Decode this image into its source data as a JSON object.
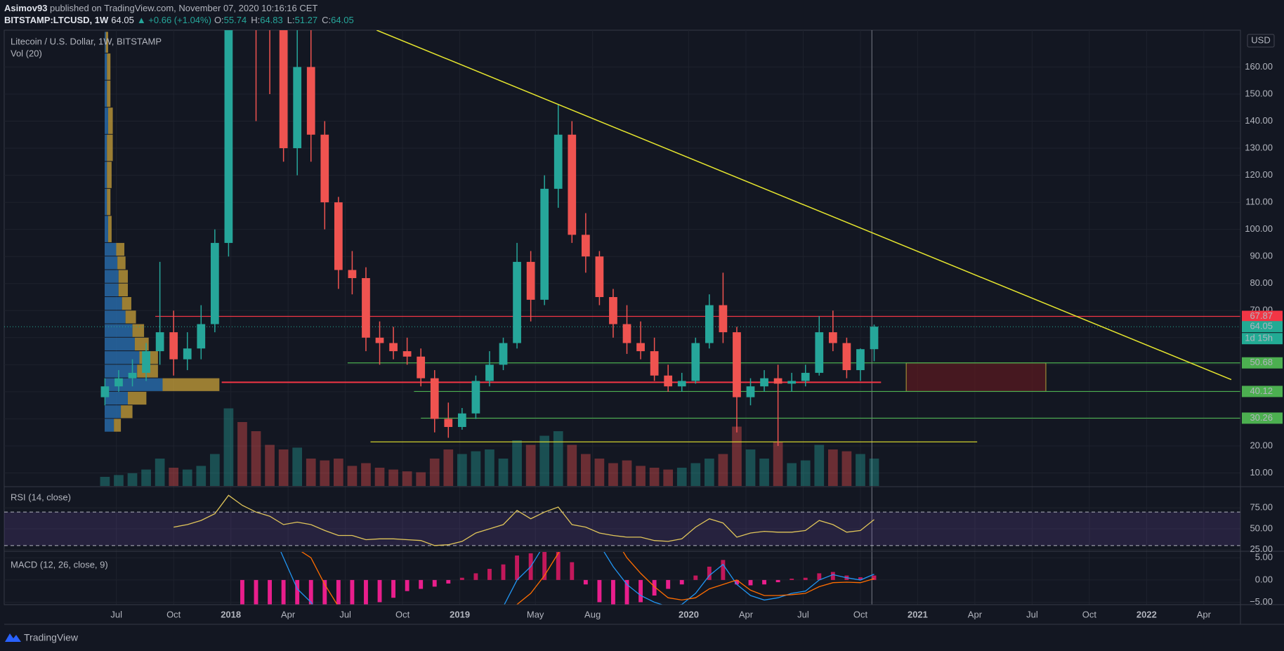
{
  "header": {
    "author": "Asimov93",
    "published": "published on TradingView.com, November 07, 2020 10:16:16 CET",
    "symbol": "BITSTAMP:LTCUSD, 1W",
    "price": "64.05",
    "change": "▲ +0.66 (+1.04%)",
    "ohlc": [
      {
        "key": "O:",
        "value": "55.74"
      },
      {
        "key": "H:",
        "value": "64.83"
      },
      {
        "key": "L:",
        "value": "51.27"
      },
      {
        "key": "C:",
        "value": "64.05"
      }
    ]
  },
  "footer": {
    "brand": "TradingView"
  },
  "chart_data": {
    "type": "candlestick",
    "title": "Litecoin / U.S. Dollar, 1W, BITSTAMP",
    "currency": "USD",
    "up_color": "#26a69a",
    "down_color": "#ef5350",
    "grid": true,
    "xlim": [
      2017.01,
      2022.41
    ],
    "xticks": [
      {
        "value": 2017.5,
        "label": "Jul"
      },
      {
        "value": 2017.75,
        "label": "Oct"
      },
      2018,
      {
        "value": 2018.25,
        "label": "Apr"
      },
      {
        "value": 2018.5,
        "label": "Jul"
      },
      {
        "value": 2018.75,
        "label": "Oct"
      },
      2019,
      {
        "value": 2019.33,
        "label": "May"
      },
      {
        "value": 2019.58,
        "label": "Aug"
      },
      2020,
      {
        "value": 2020.25,
        "label": "Apr"
      },
      {
        "value": 2020.5,
        "label": "Jul"
      },
      {
        "value": 2020.75,
        "label": "Oct"
      },
      2021,
      {
        "value": 2021.25,
        "label": "Apr"
      },
      {
        "value": 2021.5,
        "label": "Jul"
      },
      {
        "value": 2021.75,
        "label": "Oct"
      },
      2022,
      {
        "value": 2022.25,
        "label": "Apr"
      }
    ],
    "ylim": [
      5.2,
      173.6
    ],
    "yticks": [
      {
        "value": 10,
        "label": "10.00"
      },
      {
        "value": 20,
        "label": "20.00"
      },
      {
        "value": 30,
        "label": "30.00"
      },
      {
        "value": 40,
        "label": "40.00"
      },
      {
        "value": 50,
        "label": "50.00"
      },
      {
        "value": 60,
        "label": "60.00"
      },
      {
        "value": 70,
        "label": "70.00"
      },
      {
        "value": 80,
        "label": "80.00"
      },
      {
        "value": 90,
        "label": "90.00"
      },
      {
        "value": 100,
        "label": "100.00"
      },
      {
        "value": 110,
        "label": "110.00"
      },
      {
        "value": 120,
        "label": "120.00"
      },
      {
        "value": 130,
        "label": "130.00"
      },
      {
        "value": 140,
        "label": "140.00"
      },
      {
        "value": 150,
        "label": "150.00"
      },
      {
        "value": 160,
        "label": "160.00"
      }
    ],
    "x": [
      2017.45,
      2017.51,
      2017.57,
      2017.63,
      2017.69,
      2017.75,
      2017.81,
      2017.87,
      2017.93,
      2017.99,
      2018.05,
      2018.11,
      2018.17,
      2018.23,
      2018.29,
      2018.35,
      2018.41,
      2018.47,
      2018.53,
      2018.59,
      2018.65,
      2018.71,
      2018.77,
      2018.83,
      2018.89,
      2018.95,
      2019.01,
      2019.07,
      2019.13,
      2019.19,
      2019.25,
      2019.31,
      2019.37,
      2019.43,
      2019.49,
      2019.55,
      2019.61,
      2019.67,
      2019.73,
      2019.79,
      2019.85,
      2019.91,
      2019.97,
      2020.03,
      2020.09,
      2020.15,
      2020.21,
      2020.27,
      2020.33,
      2020.39,
      2020.45,
      2020.51,
      2020.57,
      2020.63,
      2020.69,
      2020.75,
      2020.81
    ],
    "open": [
      38,
      42,
      45,
      47,
      55,
      62,
      52,
      56,
      65,
      95,
      300,
      240,
      200,
      180,
      130,
      160,
      135,
      110,
      85,
      82,
      60,
      58,
      55,
      53,
      45,
      30,
      27,
      32,
      44,
      50,
      58,
      88,
      74,
      115,
      135,
      98,
      90,
      75,
      65,
      58,
      55,
      46,
      42,
      44,
      58,
      72,
      62,
      38,
      42,
      45,
      43,
      44,
      47,
      62,
      58,
      48,
      55.74
    ],
    "high": [
      45,
      48,
      52,
      58,
      88,
      70,
      62,
      72,
      100,
      370,
      330,
      250,
      230,
      200,
      180,
      175,
      140,
      112,
      92,
      86,
      66,
      64,
      60,
      56,
      48,
      36,
      34,
      46,
      55,
      60,
      95,
      92,
      120,
      146,
      140,
      106,
      92,
      78,
      72,
      66,
      60,
      50,
      47,
      60,
      76,
      84,
      64,
      45,
      48,
      50,
      47,
      50,
      68,
      70,
      60,
      56,
      64.83
    ],
    "low": [
      35,
      40,
      42,
      44,
      50,
      46,
      48,
      52,
      62,
      90,
      180,
      140,
      150,
      125,
      120,
      125,
      100,
      78,
      76,
      55,
      50,
      52,
      50,
      42,
      25,
      23,
      26,
      30,
      42,
      48,
      56,
      66,
      72,
      108,
      95,
      84,
      72,
      60,
      54,
      52,
      44,
      40,
      40,
      43,
      56,
      58,
      25,
      35,
      40,
      20,
      40,
      42,
      46,
      55,
      45,
      44,
      51.27
    ],
    "close": [
      42,
      45,
      47,
      55,
      62,
      52,
      56,
      65,
      95,
      300,
      240,
      200,
      180,
      130,
      160,
      135,
      110,
      85,
      82,
      60,
      58,
      55,
      53,
      45,
      30,
      27,
      32,
      44,
      50,
      58,
      88,
      74,
      115,
      135,
      98,
      90,
      75,
      65,
      58,
      55,
      46,
      42,
      44,
      58,
      72,
      62,
      38,
      42,
      45,
      43,
      44,
      47,
      62,
      58,
      48,
      55.74,
      64.05
    ],
    "volume": {
      "name": "Vol (20)",
      "vlim": [
        0,
        100
      ],
      "values": [
        10,
        12,
        14,
        18,
        30,
        20,
        18,
        22,
        35,
        85,
        70,
        60,
        45,
        40,
        42,
        30,
        28,
        30,
        22,
        25,
        20,
        18,
        16,
        15,
        30,
        40,
        35,
        38,
        40,
        30,
        50,
        45,
        55,
        60,
        45,
        35,
        30,
        25,
        28,
        22,
        20,
        18,
        20,
        25,
        30,
        35,
        65,
        40,
        30,
        48,
        25,
        28,
        45,
        40,
        38,
        35,
        30
      ]
    },
    "profile": {
      "up_color": "#2b74b8",
      "down_color": "#c9a23a",
      "vlim": [
        0,
        100
      ],
      "rows": [
        {
          "low": 25,
          "high": 30,
          "up": 8,
          "down": 6
        },
        {
          "low": 30,
          "high": 35,
          "up": 14,
          "down": 10
        },
        {
          "low": 35,
          "high": 40,
          "up": 20,
          "down": 16
        },
        {
          "low": 40,
          "high": 45,
          "up": 50,
          "down": 49
        },
        {
          "low": 45,
          "high": 50,
          "up": 28,
          "down": 18
        },
        {
          "low": 50,
          "high": 55,
          "up": 30,
          "down": 16
        },
        {
          "low": 55,
          "high": 60,
          "up": 26,
          "down": 12
        },
        {
          "low": 60,
          "high": 65,
          "up": 24,
          "down": 10
        },
        {
          "low": 65,
          "high": 70,
          "up": 18,
          "down": 9
        },
        {
          "low": 70,
          "high": 75,
          "up": 15,
          "down": 8
        },
        {
          "low": 75,
          "high": 80,
          "up": 12,
          "down": 8
        },
        {
          "low": 80,
          "high": 85,
          "up": 12,
          "down": 8
        },
        {
          "low": 85,
          "high": 90,
          "up": 11,
          "down": 7
        },
        {
          "low": 90,
          "high": 95,
          "up": 10,
          "down": 7
        },
        {
          "low": 95,
          "high": 105,
          "up": 3,
          "down": 3
        },
        {
          "low": 105,
          "high": 115,
          "up": 2,
          "down": 3
        },
        {
          "low": 115,
          "high": 125,
          "up": 2,
          "down": 4
        },
        {
          "low": 125,
          "high": 135,
          "up": 2,
          "down": 5
        },
        {
          "low": 135,
          "high": 145,
          "up": 3,
          "down": 4
        },
        {
          "low": 145,
          "high": 155,
          "up": 2,
          "down": 3
        },
        {
          "low": 155,
          "high": 165,
          "up": 2,
          "down": 3
        },
        {
          "low": 165,
          "high": 173,
          "up": 1,
          "down": 2
        }
      ]
    },
    "levels": [
      {
        "value": 67.87,
        "color": "#f23645",
        "from": 2017.67,
        "label_color": "#f23645",
        "text_color": "#ffffff"
      },
      {
        "value": 43.5,
        "color": "#f23645",
        "from": 2017.96,
        "to": 2020.84
      },
      {
        "value": 50.68,
        "color": "#4caf50",
        "from": 2018.51,
        "label_color": "#4caf50",
        "text_color": "#000000"
      },
      {
        "value": 40.12,
        "color": "#4caf50",
        "from": 2018.8,
        "label_color": "#4caf50",
        "text_color": "#000000"
      },
      {
        "value": 30.26,
        "color": "#4caf50",
        "from": 2018.83,
        "label_color": "#4caf50",
        "text_color": "#000000"
      },
      {
        "value": 21.5,
        "color": "#e6e62e",
        "from": 2018.61,
        "to": 2021.26
      }
    ],
    "last": {
      "value": 64.05,
      "color": "#22ab94",
      "countdown": "1d 15h"
    },
    "trendline": {
      "x": [
        2018.637,
        2022.37
      ],
      "y": [
        173.6,
        44.5
      ],
      "color": "#e6e62e"
    },
    "box": {
      "x": [
        2020.95,
        2021.56
      ],
      "y": [
        40.12,
        50.68
      ],
      "fill": "#5c1a1f",
      "stroke": "#b3a13a"
    },
    "crosshair_x": 2020.8,
    "rsi": {
      "name": "RSI (14, close)",
      "color": "#e0c55a",
      "band_color": "#7e57c2",
      "ylim": [
        24,
        99.5
      ],
      "yticks": [
        {
          "value": 75,
          "label": "75.00"
        },
        {
          "value": 50,
          "label": "50.00"
        },
        {
          "value": 25,
          "label": "25.00"
        }
      ],
      "levels": [
        70,
        30
      ],
      "values": [
        null,
        null,
        null,
        null,
        null,
        52,
        55,
        60,
        68,
        90,
        78,
        70,
        65,
        55,
        58,
        55,
        48,
        42,
        42,
        37,
        38,
        38,
        37,
        36,
        30,
        31,
        35,
        45,
        50,
        55,
        72,
        62,
        70,
        76,
        55,
        52,
        45,
        42,
        40,
        40,
        36,
        35,
        38,
        52,
        62,
        57,
        40,
        45,
        47,
        46,
        46,
        48,
        60,
        55,
        46,
        48,
        61
      ]
    },
    "macd": {
      "name": "MACD (12, 26, close, 9)",
      "ylim": [
        -5.55,
        6.3
      ],
      "yticks": [
        {
          "value": 5,
          "label": "5.00"
        },
        {
          "value": 0,
          "label": "0.00"
        },
        {
          "value": -5,
          "label": "−5.00"
        }
      ],
      "hist_colors": [
        "#c2185b",
        "#e91e8c"
      ],
      "macd_color": "#2196f3",
      "signal_color": "#ff6d00",
      "hist": [
        null,
        null,
        null,
        null,
        null,
        null,
        null,
        null,
        null,
        null,
        -12,
        -15,
        -14,
        -12,
        -9,
        -10,
        -9,
        -8,
        -7,
        -6,
        -5,
        -4,
        -2.5,
        -2,
        -1.5,
        -0.8,
        0.5,
        1.5,
        2.5,
        3.5,
        5.5,
        6,
        7,
        8,
        4,
        -1,
        -5,
        -7,
        -6,
        -5,
        -3.5,
        -2,
        -1,
        1,
        3,
        4.5,
        -1,
        -1.2,
        -1,
        -0.5,
        0.3,
        0.5,
        1.5,
        1.8,
        1,
        0.6,
        1
      ],
      "macd": [
        null,
        null,
        null,
        null,
        null,
        null,
        null,
        null,
        null,
        null,
        30,
        20,
        12,
        5,
        -2,
        -5,
        -10,
        -14,
        -17,
        -19,
        -20,
        -20,
        -19,
        -19,
        -20,
        -19,
        -17,
        -14,
        -10,
        -6,
        0,
        3,
        8,
        14,
        16,
        13,
        8,
        3,
        -1,
        -3.5,
        -5,
        -6,
        -5.5,
        -3,
        1,
        3.5,
        -1,
        -3.5,
        -4.5,
        -4,
        -3,
        -2.5,
        0,
        1.2,
        0.5,
        0,
        1.3
      ],
      "signal": [
        null,
        null,
        null,
        null,
        null,
        null,
        null,
        null,
        null,
        null,
        42,
        35,
        26,
        17,
        7,
        5,
        -1,
        -6,
        -10,
        -13,
        -15,
        -16,
        -16.5,
        -17,
        -18.5,
        -18.2,
        -17.5,
        -15.5,
        -12.5,
        -9.5,
        -5.5,
        -3,
        1,
        6,
        12,
        14,
        13,
        10,
        5,
        1.5,
        -1.5,
        -4,
        -4.5,
        -4,
        -2,
        -1,
        0,
        -2.3,
        -3.5,
        -3.5,
        -3.3,
        -3,
        -1.5,
        -0.6,
        -0.5,
        -0.6,
        0.3
      ]
    }
  }
}
